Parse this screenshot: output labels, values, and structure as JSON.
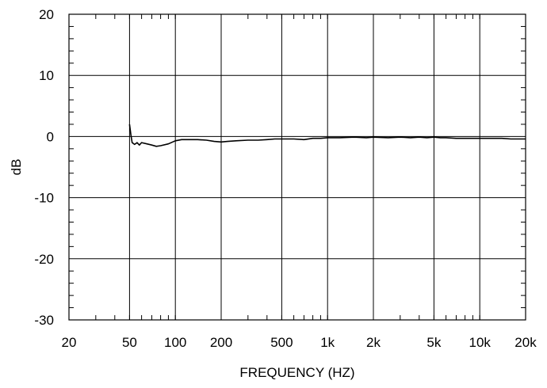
{
  "chart_data": {
    "type": "line",
    "title": "",
    "xlabel": "FREQUENCY  (HZ)",
    "ylabel": "dB",
    "x_scale": "log",
    "xlim": [
      20,
      20000
    ],
    "ylim": [
      -30,
      20
    ],
    "grid": true,
    "x_ticks": [
      {
        "value": 20,
        "label": "20"
      },
      {
        "value": 50,
        "label": "50"
      },
      {
        "value": 100,
        "label": "100"
      },
      {
        "value": 200,
        "label": "200"
      },
      {
        "value": 500,
        "label": "500"
      },
      {
        "value": 1000,
        "label": "1k"
      },
      {
        "value": 2000,
        "label": "2k"
      },
      {
        "value": 5000,
        "label": "5k"
      },
      {
        "value": 10000,
        "label": "10k"
      },
      {
        "value": 20000,
        "label": "20k"
      }
    ],
    "y_ticks": [
      {
        "value": 20,
        "label": "20"
      },
      {
        "value": 10,
        "label": "10"
      },
      {
        "value": 0,
        "label": "0"
      },
      {
        "value": -10,
        "label": "-10"
      },
      {
        "value": -20,
        "label": "-20"
      },
      {
        "value": -30,
        "label": "-30"
      }
    ],
    "series": [
      {
        "color": "#000000",
        "x": [
          50,
          51,
          52,
          54,
          56,
          58,
          60,
          65,
          70,
          75,
          80,
          90,
          100,
          110,
          120,
          140,
          160,
          180,
          200,
          220,
          250,
          300,
          350,
          400,
          450,
          500,
          600,
          700,
          800,
          900,
          1000,
          1200,
          1500,
          1800,
          2000,
          2500,
          3000,
          3500,
          4000,
          4500,
          5000,
          5500,
          6000,
          7000,
          8000,
          9000,
          10000,
          12000,
          14000,
          16000,
          18000,
          20000
        ],
        "y": [
          2,
          0.3,
          -1,
          -1.3,
          -1.0,
          -1.4,
          -1.0,
          -1.2,
          -1.4,
          -1.6,
          -1.5,
          -1.2,
          -0.7,
          -0.5,
          -0.5,
          -0.5,
          -0.6,
          -0.8,
          -0.9,
          -0.8,
          -0.7,
          -0.6,
          -0.6,
          -0.5,
          -0.4,
          -0.4,
          -0.4,
          -0.5,
          -0.3,
          -0.3,
          -0.2,
          -0.2,
          -0.1,
          -0.2,
          -0.1,
          -0.2,
          -0.1,
          -0.2,
          -0.1,
          -0.2,
          -0.1,
          -0.2,
          -0.2,
          -0.3,
          -0.3,
          -0.3,
          -0.3,
          -0.3,
          -0.3,
          -0.4,
          -0.4,
          -0.4
        ]
      }
    ]
  }
}
